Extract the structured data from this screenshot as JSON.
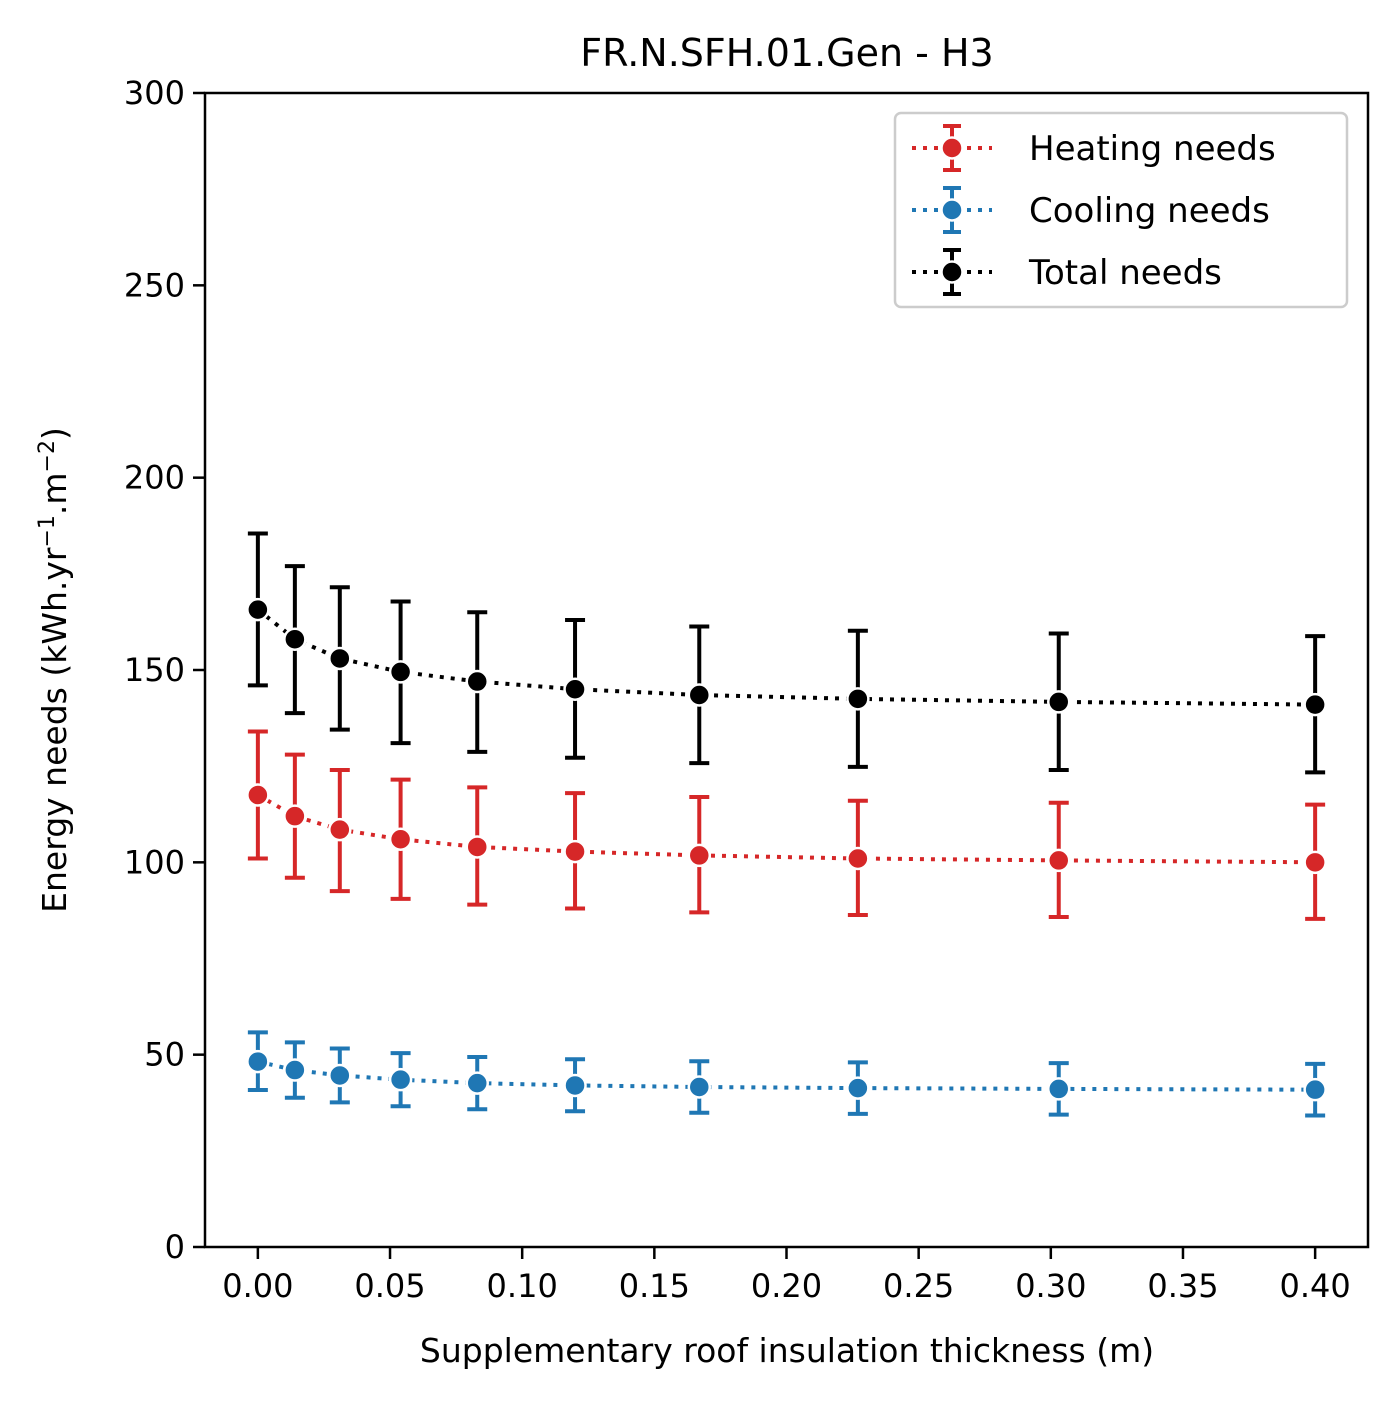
{
  "chart_data": {
    "type": "scatter",
    "title": "FR.N.SFH.01.Gen - H3",
    "xlabel": "Supplementary roof insulation thickness (m)",
    "ylabel": "Energy needs (kWh.yr",
    "ylabel_sup1": "−1",
    "ylabel_mid": ".m",
    "ylabel_sup2": "−2",
    "ylabel_end": ")",
    "xlim": [
      -0.02,
      0.42
    ],
    "ylim": [
      0,
      300
    ],
    "xticks": [
      0.0,
      0.05,
      0.1,
      0.15,
      0.2,
      0.25,
      0.3,
      0.35,
      0.4
    ],
    "xtick_labels": [
      "0.00",
      "0.05",
      "0.10",
      "0.15",
      "0.20",
      "0.25",
      "0.30",
      "0.35",
      "0.40"
    ],
    "yticks": [
      0,
      50,
      100,
      150,
      200,
      250,
      300
    ],
    "ytick_labels": [
      "0",
      "50",
      "100",
      "150",
      "200",
      "250",
      "300"
    ],
    "legend_position": "top-right",
    "x": [
      0.0,
      0.014,
      0.031,
      0.054,
      0.083,
      0.12,
      0.167,
      0.227,
      0.303,
      0.4
    ],
    "series": [
      {
        "name": "Heating needs",
        "color": "#d62728",
        "values": [
          117.5,
          112.0,
          108.5,
          106.0,
          104.0,
          102.8,
          101.8,
          101.0,
          100.5,
          100.0
        ],
        "err_low": [
          101.0,
          96.0,
          92.5,
          90.5,
          89.0,
          88.0,
          87.0,
          86.3,
          85.8,
          85.3
        ],
        "err_high": [
          134.0,
          128.0,
          124.0,
          121.5,
          119.5,
          118.0,
          117.0,
          116.0,
          115.5,
          115.0
        ]
      },
      {
        "name": "Cooling needs",
        "color": "#1f77b4",
        "values": [
          48.2,
          46.0,
          44.6,
          43.5,
          42.6,
          42.0,
          41.6,
          41.3,
          41.1,
          40.9
        ],
        "err_low": [
          40.8,
          38.8,
          37.6,
          36.6,
          35.8,
          35.3,
          34.9,
          34.6,
          34.4,
          34.2
        ],
        "err_high": [
          55.8,
          53.2,
          51.6,
          50.4,
          49.4,
          48.8,
          48.3,
          48.0,
          47.8,
          47.6
        ]
      },
      {
        "name": "Total needs",
        "color": "#000000",
        "values": [
          165.7,
          158.0,
          153.0,
          149.5,
          147.0,
          145.0,
          143.5,
          142.5,
          141.7,
          141.0
        ],
        "err_low": [
          146.0,
          138.8,
          134.5,
          131.0,
          128.7,
          127.2,
          125.8,
          124.8,
          124.0,
          123.4
        ],
        "err_high": [
          185.5,
          177.0,
          171.5,
          167.8,
          165.0,
          163.0,
          161.3,
          160.2,
          159.5,
          158.8
        ]
      }
    ]
  }
}
